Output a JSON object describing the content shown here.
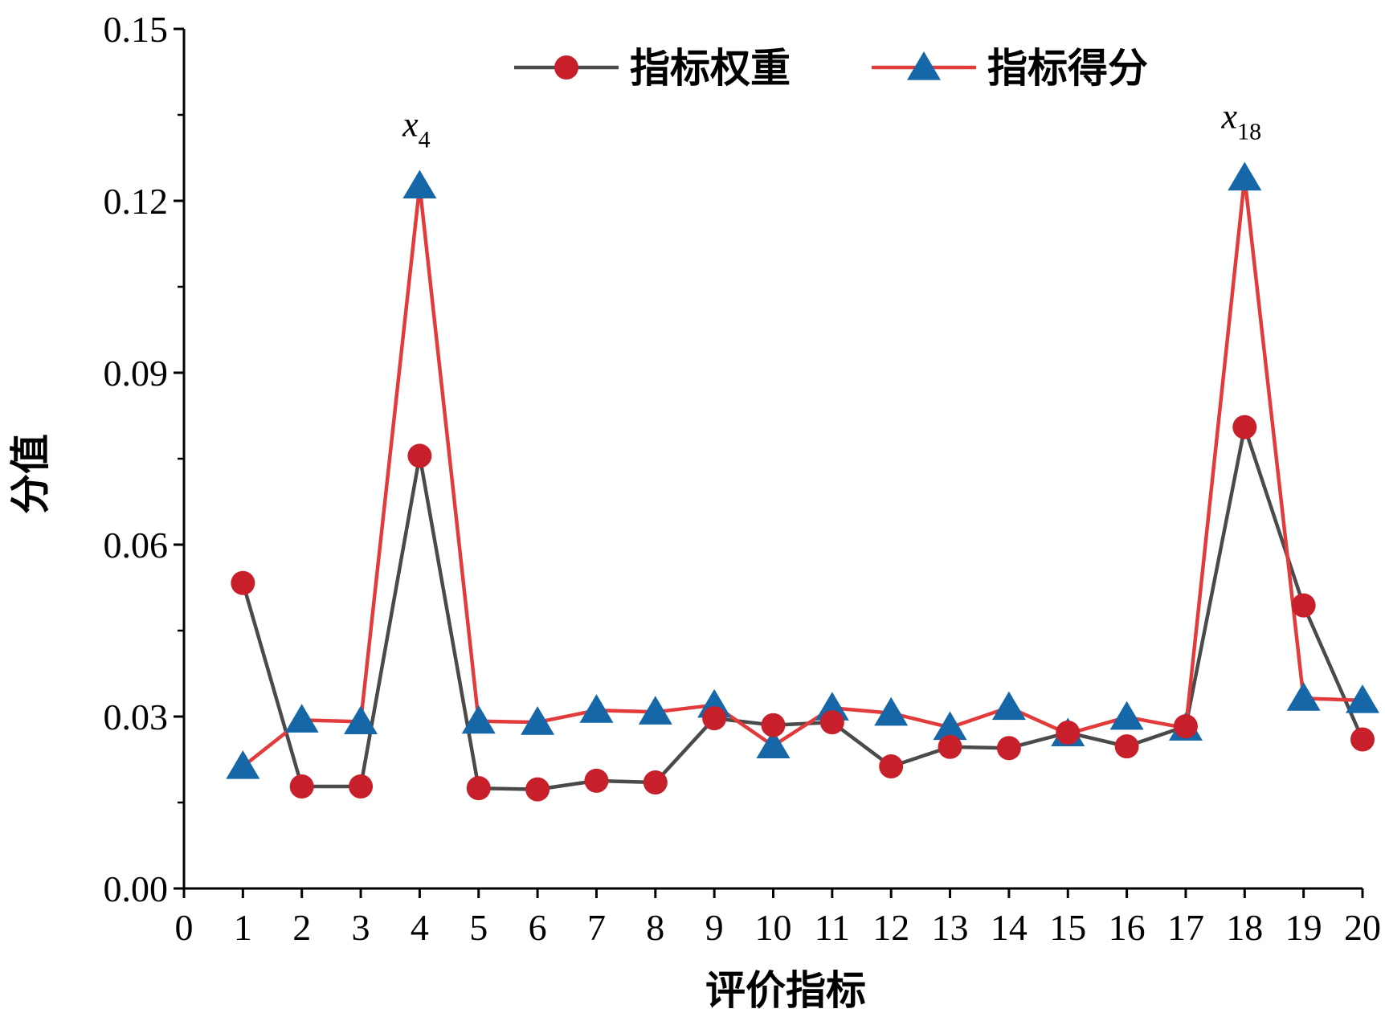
{
  "chart_data": {
    "type": "line",
    "title": "",
    "xlabel": "评价指标",
    "ylabel": "分值",
    "xlim": [
      0,
      20
    ],
    "ylim": [
      0,
      0.15
    ],
    "x_ticks": [
      "0",
      "1",
      "2",
      "3",
      "4",
      "5",
      "6",
      "7",
      "8",
      "9",
      "10",
      "11",
      "12",
      "13",
      "14",
      "15",
      "16",
      "17",
      "18",
      "19",
      "20"
    ],
    "y_ticks": [
      "0.00",
      "0.03",
      "0.06",
      "0.09",
      "0.12",
      "0.15"
    ],
    "x": [
      1,
      2,
      3,
      4,
      5,
      6,
      7,
      8,
      9,
      10,
      11,
      12,
      13,
      14,
      15,
      16,
      17,
      18,
      19,
      20
    ],
    "legend_position": "top-center",
    "grid": false,
    "series": [
      {
        "name": "指标权重",
        "marker": "circle",
        "line_color": "#4a4a4a",
        "marker_color": "#c8202a",
        "values": [
          0.0533,
          0.0178,
          0.0178,
          0.0755,
          0.0175,
          0.0173,
          0.0188,
          0.0185,
          0.0297,
          0.0285,
          0.029,
          0.0213,
          0.0247,
          0.0245,
          0.0272,
          0.0248,
          0.0283,
          0.0805,
          0.0494,
          0.026
        ]
      },
      {
        "name": "指标得分",
        "marker": "triangle",
        "line_color": "#e23b3b",
        "marker_color": "#1567a8",
        "values": [
          0.0213,
          0.0294,
          0.0291,
          0.1226,
          0.0292,
          0.029,
          0.0311,
          0.0308,
          0.032,
          0.0249,
          0.0315,
          0.0306,
          0.0281,
          0.0316,
          0.027,
          0.0299,
          0.028,
          0.124,
          0.0332,
          0.0328
        ]
      }
    ],
    "annotations": [
      {
        "base": "x",
        "sub": "4",
        "x": 4
      },
      {
        "base": "x",
        "sub": "18",
        "x": 18
      }
    ]
  }
}
